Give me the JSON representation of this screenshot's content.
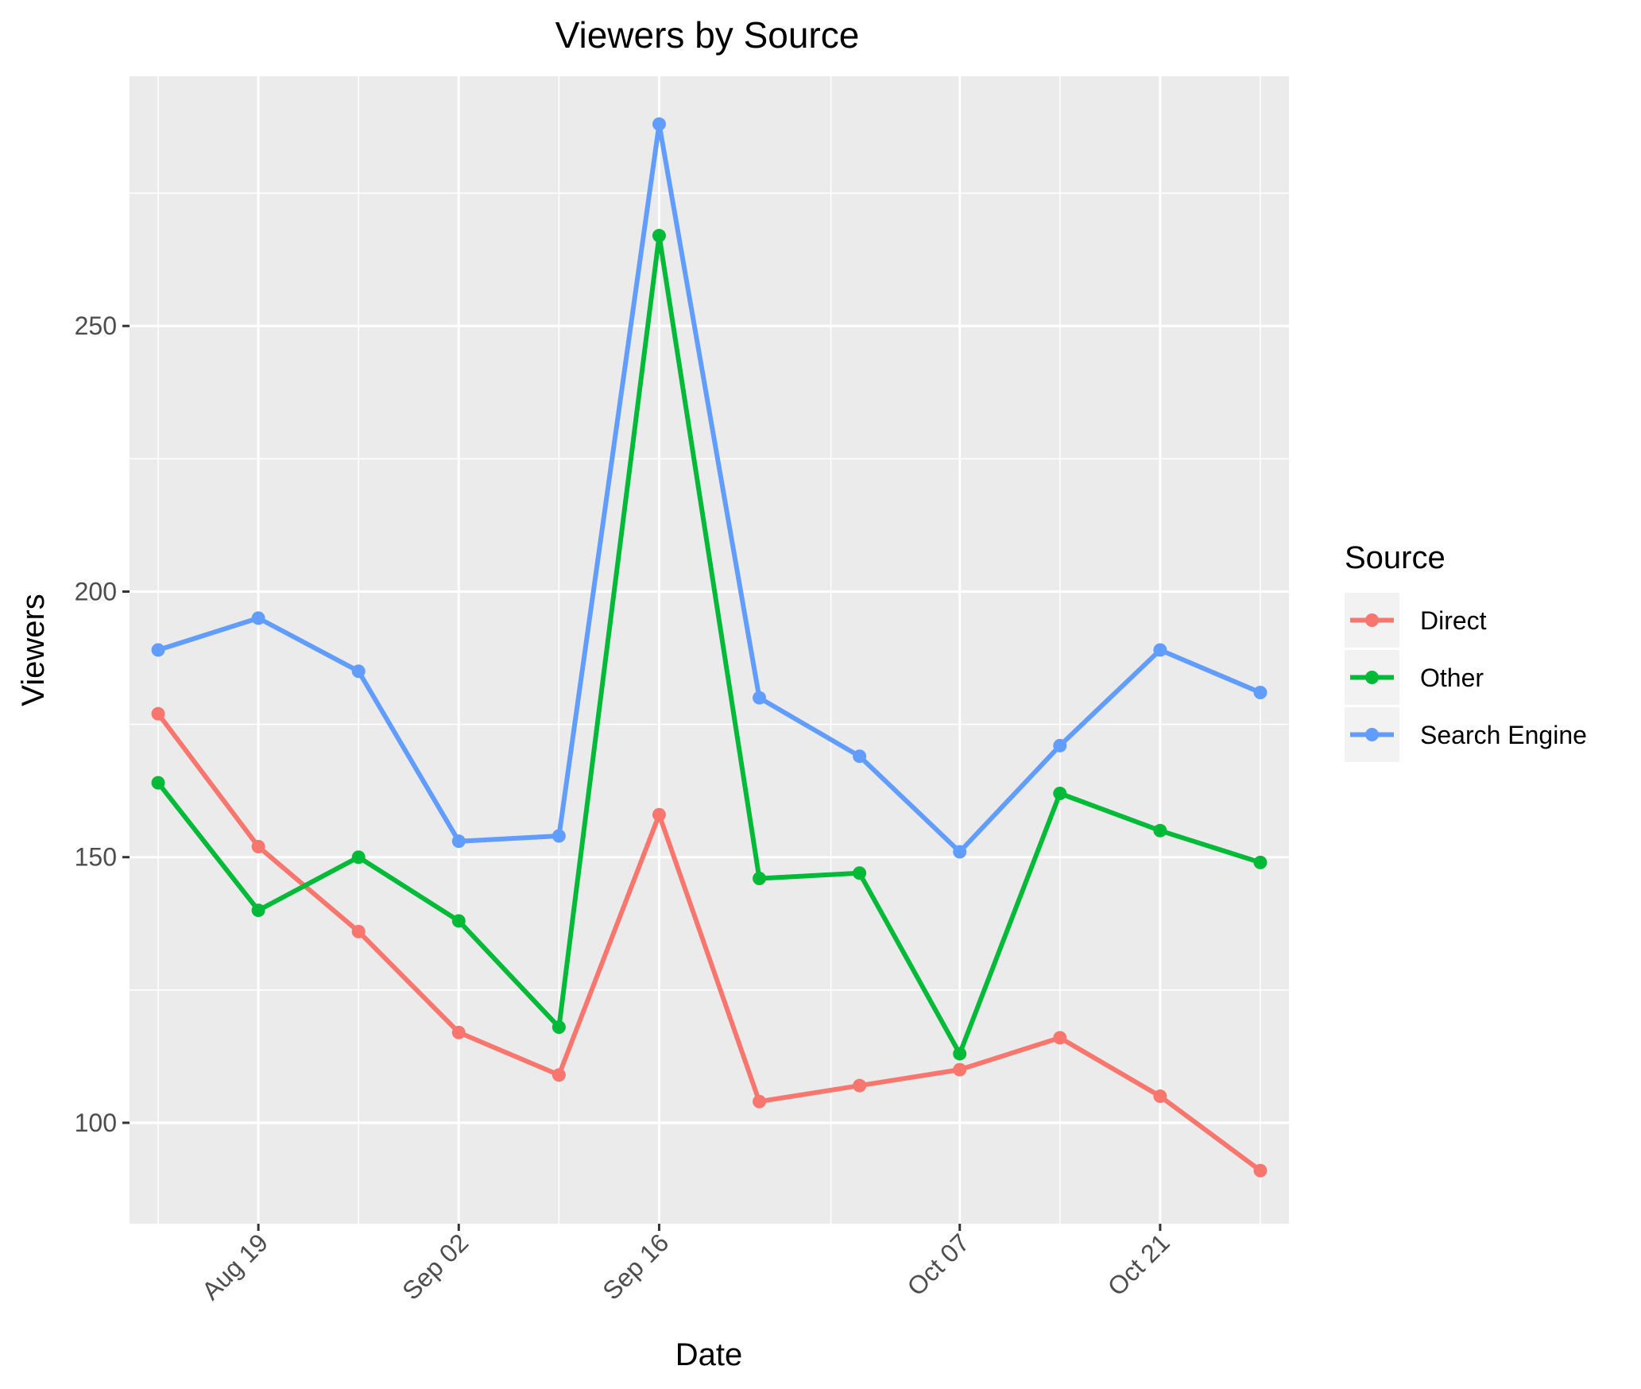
{
  "chart_data": {
    "type": "line",
    "title": "Viewers by Source",
    "xlabel": "Date",
    "ylabel": "Viewers",
    "x": [
      "2024-08-12",
      "2024-08-19",
      "2024-08-26",
      "2024-09-02",
      "2024-09-09",
      "2024-09-16",
      "2024-09-23",
      "2024-09-30",
      "2024-10-07",
      "2024-10-14",
      "2024-10-21",
      "2024-10-28"
    ],
    "x_ticks": [
      {
        "date": "2024-08-19",
        "label": "Aug 19"
      },
      {
        "date": "2024-09-02",
        "label": "Sep 02"
      },
      {
        "date": "2024-09-16",
        "label": "Sep 16"
      },
      {
        "date": "2024-10-07",
        "label": "Oct 07"
      },
      {
        "date": "2024-10-21",
        "label": "Oct 21"
      }
    ],
    "x_minor_ticks": [
      "2024-08-12",
      "2024-08-26",
      "2024-09-09",
      "2024-09-28",
      "2024-10-14",
      "2024-10-28"
    ],
    "xlim": [
      "2024-08-10",
      "2024-10-30"
    ],
    "ylim": [
      81,
      297
    ],
    "y_ticks": [
      100,
      150,
      200,
      250
    ],
    "y_minor_ticks": [
      125,
      175,
      225,
      275
    ],
    "grid": true,
    "legend": {
      "title": "Source",
      "position": "right"
    },
    "series": [
      {
        "name": "Direct",
        "color": "#F8766D",
        "values": [
          177,
          152,
          136,
          117,
          109,
          158,
          104,
          107,
          110,
          116,
          105,
          91
        ]
      },
      {
        "name": "Other",
        "color": "#00BA38",
        "values": [
          164,
          140,
          150,
          138,
          118,
          267,
          146,
          147,
          113,
          162,
          155,
          149
        ]
      },
      {
        "name": "Search Engine",
        "color": "#619CFF",
        "values": [
          189,
          195,
          185,
          153,
          154,
          288,
          180,
          169,
          151,
          171,
          189,
          181
        ]
      }
    ]
  }
}
